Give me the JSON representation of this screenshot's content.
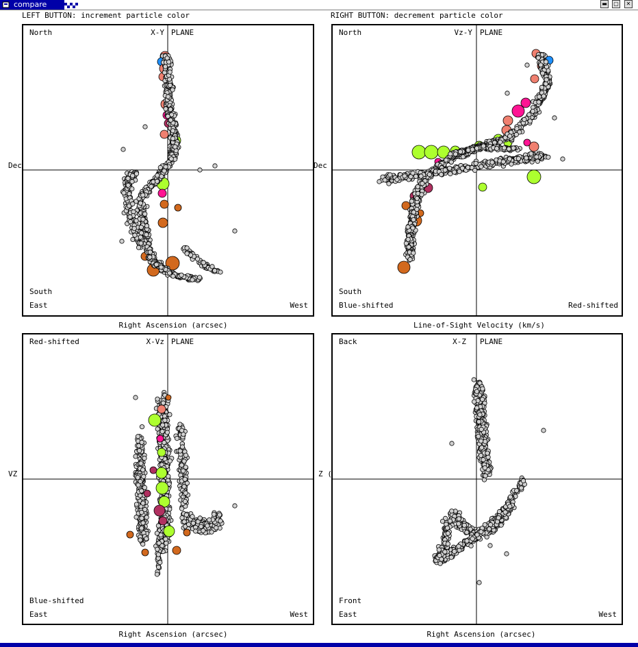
{
  "window": {
    "title": "compare"
  },
  "instructions": {
    "left": "LEFT BUTTON: increment particle color",
    "right": "RIGHT BUTTON: decrement particle color"
  },
  "panels": [
    {
      "id": "xy",
      "plane": "X-Y",
      "plane_word": "PLANE",
      "top_left": "North",
      "bottom_left_1": "South",
      "bottom_left_2": "East",
      "bottom_right": "West",
      "ylabel": "Dec",
      "xlabel": "Right Ascension (arcsec)"
    },
    {
      "id": "vzy",
      "plane": "Vz-Y",
      "plane_word": "PLANE",
      "top_left": "North",
      "bottom_left_1": "South",
      "bottom_left_2": "Blue-shifted",
      "bottom_right": "Red-shifted",
      "ylabel": "Dec",
      "xlabel": "Line-of-Sight Velocity (km/s)"
    },
    {
      "id": "xvz",
      "plane": "X-Vz",
      "plane_word": "PLANE",
      "top_left": "Red-shifted",
      "bottom_left_1": "Blue-shifted",
      "bottom_left_2": "East",
      "bottom_right": "West",
      "ylabel": "VZ",
      "xlabel": "Right Ascension (arcsec)"
    },
    {
      "id": "xz",
      "plane": "X-Z",
      "plane_word": "PLANE",
      "top_left": "Back",
      "bottom_left_1": "Front",
      "bottom_left_2": "East",
      "bottom_right": "West",
      "ylabel": "Z (",
      "xlabel": "Right Ascension (arcsec)"
    }
  ],
  "colors": {
    "particle_fill": "#d0d0d0",
    "salmon": "#f08070",
    "orange": "#d2691e",
    "lime": "#adff2f",
    "pink": "#ff1493",
    "maroon": "#b03060",
    "blue": "#1e90ff",
    "title_bar": "#0000a8"
  },
  "icons": [
    "window-menu-icon",
    "minimize-icon",
    "maximize-icon",
    "close-icon"
  ]
}
